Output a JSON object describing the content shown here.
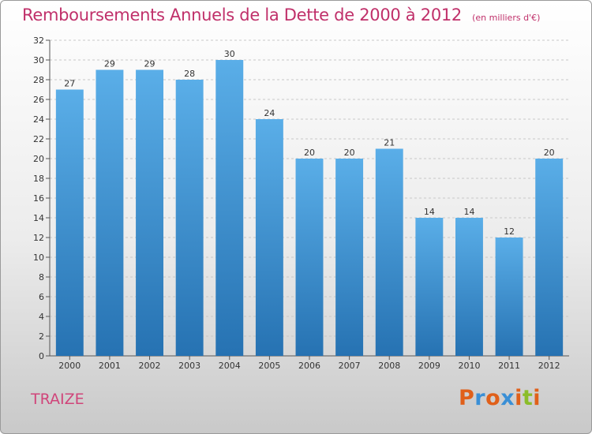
{
  "chart_data": {
    "type": "bar",
    "title": "Remboursements Annuels de la Dette de 2000 à 2012",
    "subtitle": "(en milliers d'€)",
    "categories": [
      "2000",
      "2001",
      "2002",
      "2003",
      "2004",
      "2005",
      "2006",
      "2007",
      "2008",
      "2009",
      "2010",
      "2011",
      "2012"
    ],
    "values": [
      27,
      29,
      29,
      28,
      30,
      24,
      20,
      20,
      21,
      14,
      14,
      12,
      20
    ],
    "ylim": [
      0,
      32
    ],
    "yticks": [
      0,
      2,
      4,
      6,
      8,
      10,
      12,
      14,
      16,
      18,
      20,
      22,
      24,
      26,
      28,
      30,
      32
    ],
    "grid": true,
    "xlabel": "",
    "ylabel": ""
  },
  "footer": {
    "commune": "TRAIZE",
    "logo_letters": [
      "P",
      "r",
      "o",
      "x",
      "i",
      "t",
      "i"
    ],
    "logo_colors": [
      "#e0601a",
      "#3a8fd6",
      "#e0601a",
      "#3a8fd6",
      "#e0601a",
      "#8bbd2a",
      "#e0601a"
    ]
  },
  "colors": {
    "title": "#c0306a",
    "bar_top": "#5aaee8",
    "bar_bottom": "#2672b2",
    "grid": "#c8c8c8"
  }
}
